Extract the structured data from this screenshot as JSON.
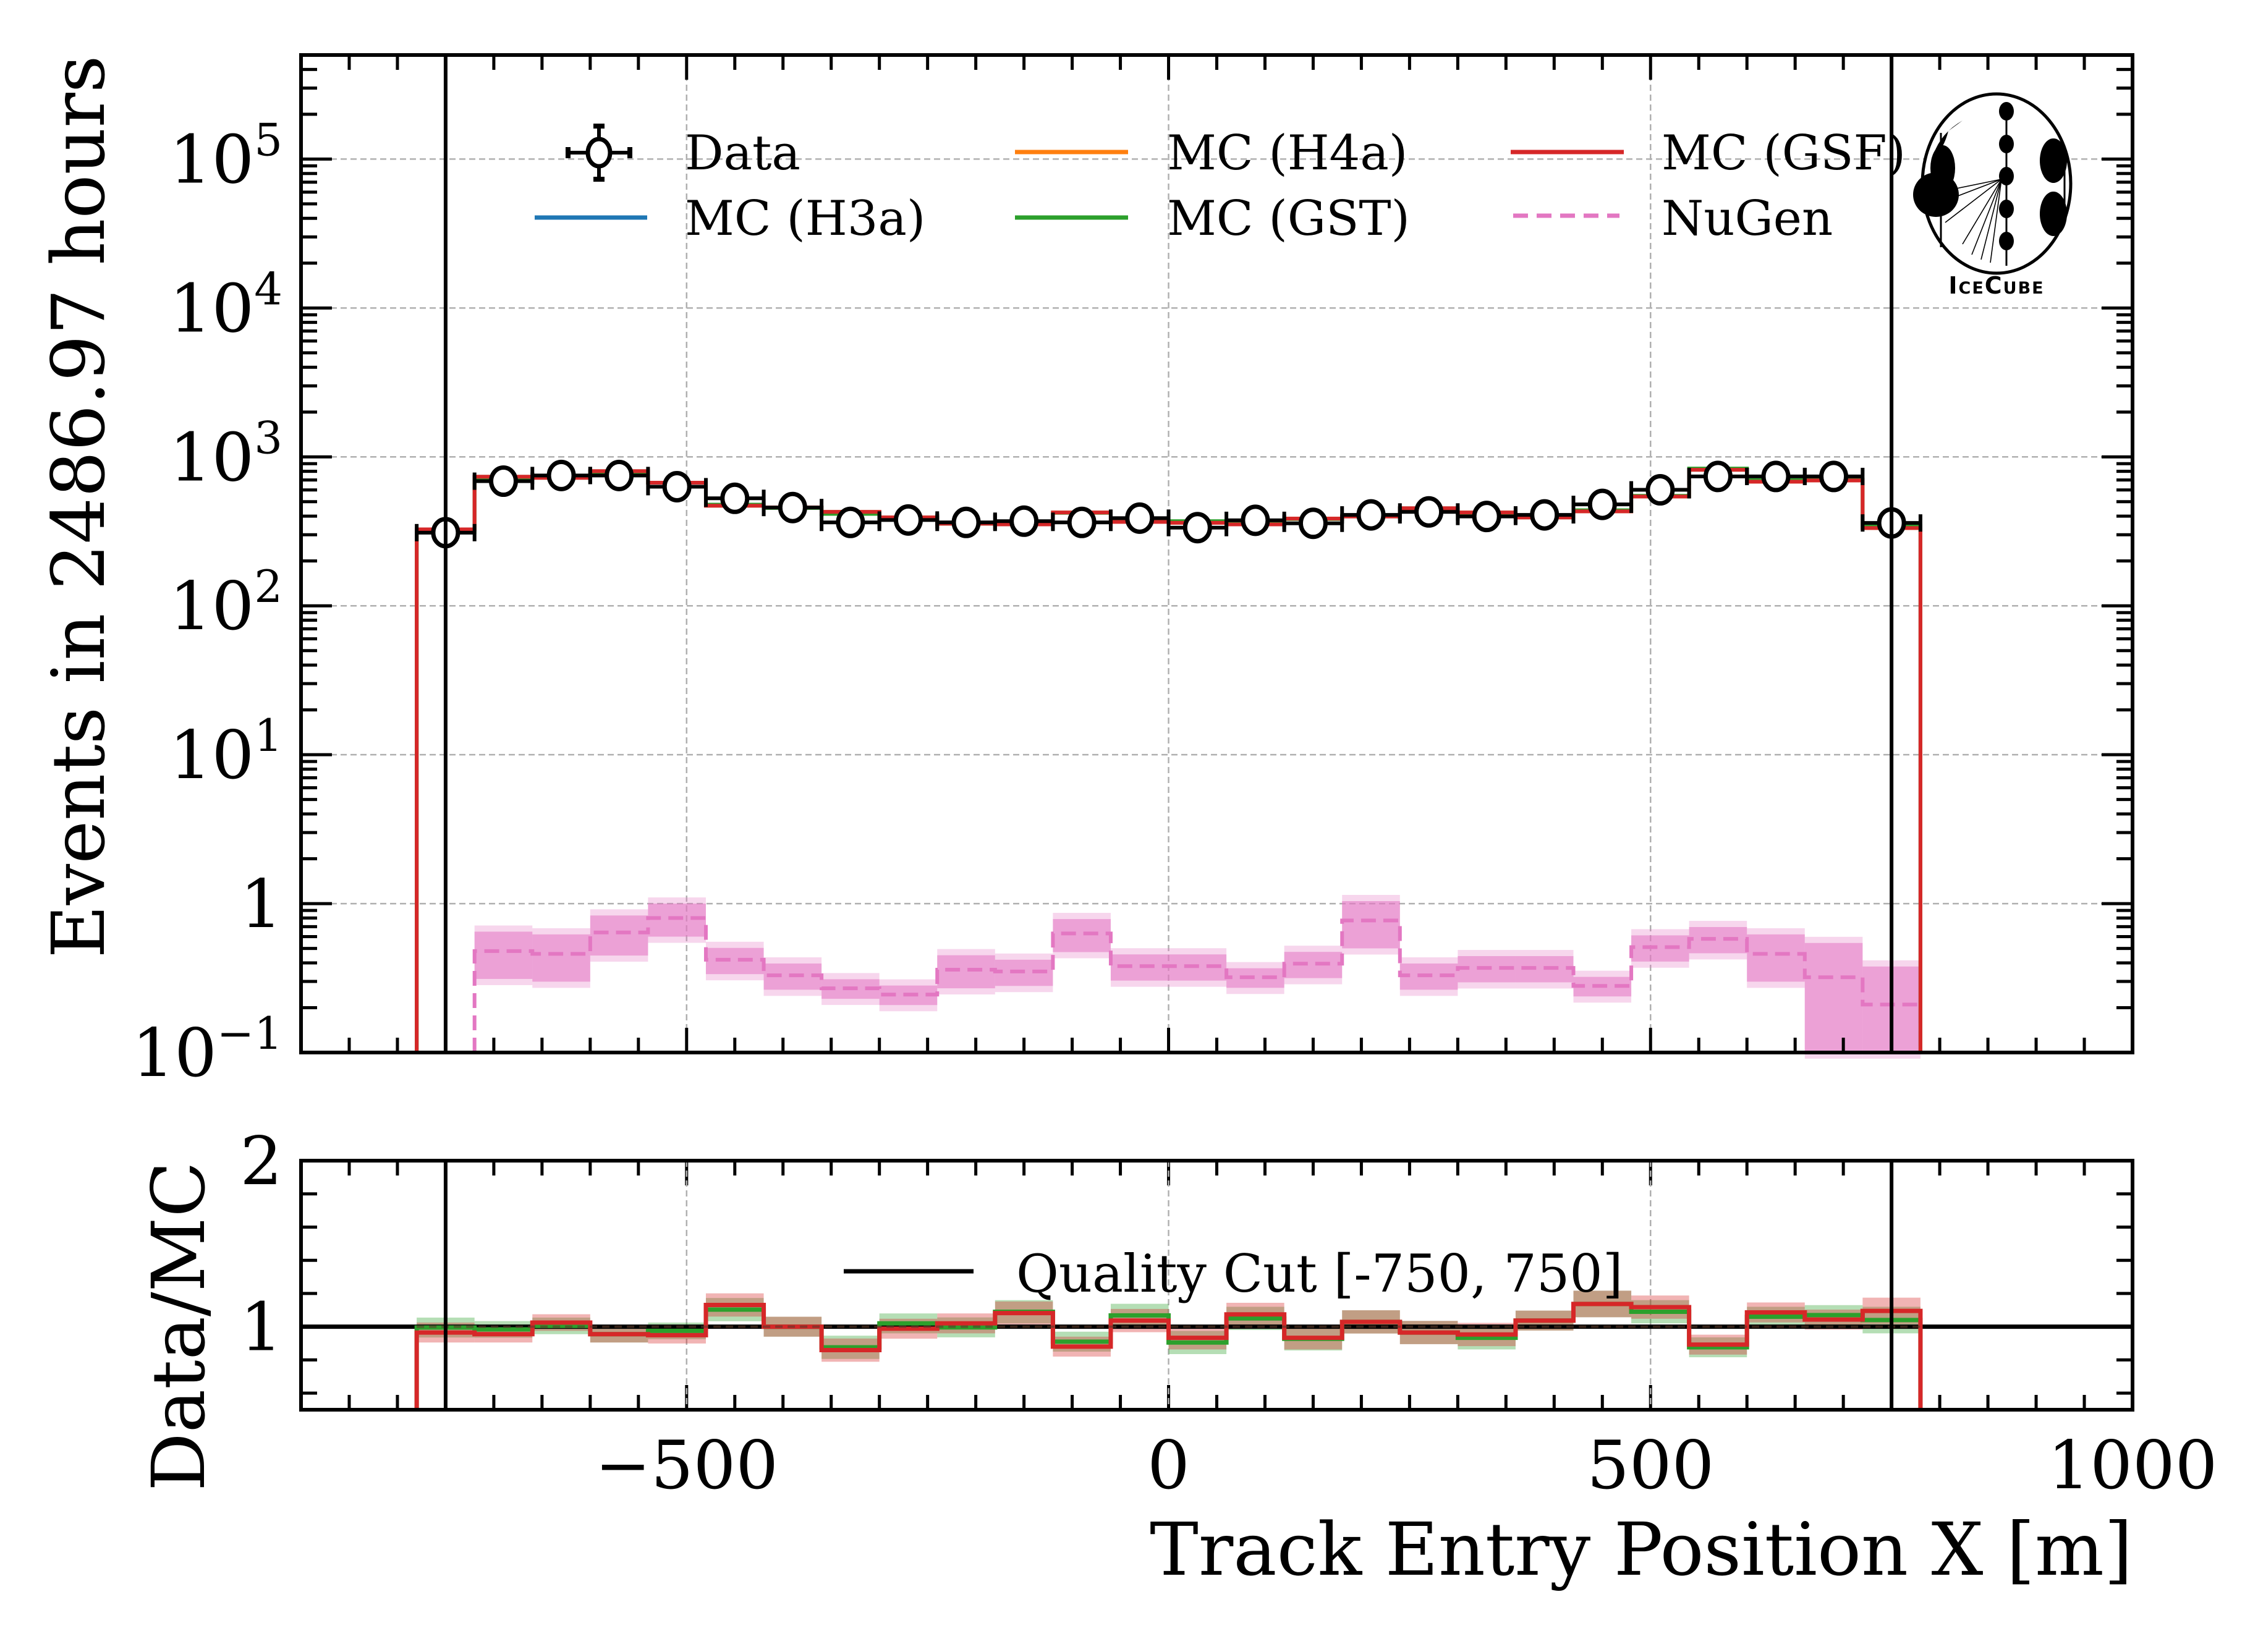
{
  "chart_data": [
    {
      "panel": "main",
      "type": "histogram-step",
      "yscale": "log",
      "xlabel": "",
      "ylabel": "Events in 2486.97 hours",
      "xlim": [
        -900,
        1000
      ],
      "ylim": [
        0.1,
        500000
      ],
      "grid": true,
      "bin_edges": [
        -780,
        -720,
        -660,
        -600,
        -540,
        -480,
        -420,
        -360,
        -300,
        -240,
        -180,
        -120,
        -60,
        0,
        60,
        120,
        180,
        240,
        300,
        360,
        420,
        480,
        540,
        600,
        660,
        720,
        780
      ],
      "y_ticks": [
        {
          "value": 0.1,
          "label": "10^-1",
          "base": "10",
          "exp": "−1"
        },
        {
          "value": 1,
          "label": "1",
          "base": "1",
          "exp": ""
        },
        {
          "value": 10,
          "label": "10^1",
          "base": "10",
          "exp": "1"
        },
        {
          "value": 100,
          "label": "10^2",
          "base": "10",
          "exp": "2"
        },
        {
          "value": 1000,
          "label": "10^3",
          "base": "10",
          "exp": "3"
        },
        {
          "value": 10000,
          "label": "10^4",
          "base": "10",
          "exp": "4"
        },
        {
          "value": 100000,
          "label": "10^5",
          "base": "10",
          "exp": "5"
        }
      ],
      "series": [
        {
          "name": "Data",
          "kind": "points",
          "color": "#000000",
          "values": [
            310,
            687,
            750,
            750,
            631,
            527,
            457,
            363,
            377,
            363,
            370,
            363,
            388,
            335,
            375,
            358,
            408,
            427,
            398,
            408,
            480,
            601,
            739,
            739,
            739,
            360
          ]
        },
        {
          "name": "MC (H3a)",
          "kind": "step",
          "color": "#1f77b4",
          "values": [
            326,
            736,
            724,
            802,
            671,
            470,
            458,
            427,
            392,
            356,
            352,
            423,
            366,
            361,
            352,
            385,
            398,
            452,
            423,
            392,
            431,
            542,
            819,
            682,
            695,
            333
          ]
        },
        {
          "name": "MC (H4a)",
          "kind": "step",
          "color": "#ff7f0e",
          "values": [
            326,
            736,
            724,
            802,
            671,
            470,
            458,
            427,
            392,
            356,
            352,
            423,
            366,
            361,
            352,
            385,
            398,
            452,
            423,
            392,
            431,
            542,
            819,
            682,
            695,
            333
          ]
        },
        {
          "name": "MC (GST)",
          "kind": "step",
          "color": "#2ca02c",
          "values": [
            312,
            727,
            736,
            790,
            671,
            478,
            454,
            414,
            385,
            356,
            358,
            421,
            372,
            370,
            355,
            383,
            405,
            445,
            418,
            398,
            438,
            548,
            835,
            698,
            705,
            345
          ]
        },
        {
          "name": "MC (GSF)",
          "kind": "step",
          "color": "#d62728",
          "values": [
            326,
            736,
            724,
            802,
            671,
            470,
            458,
            427,
            392,
            356,
            352,
            423,
            366,
            361,
            352,
            385,
            398,
            452,
            423,
            392,
            431,
            542,
            819,
            682,
            695,
            333
          ]
        },
        {
          "name": "NuGen",
          "kind": "step-dashed",
          "color": "#e377c2",
          "values": [
            null,
            0.48,
            0.46,
            0.64,
            0.8,
            0.42,
            0.33,
            0.27,
            0.245,
            0.36,
            0.35,
            0.63,
            0.38,
            0.38,
            0.32,
            0.395,
            0.77,
            0.33,
            0.37,
            0.37,
            0.28,
            0.51,
            0.58,
            0.46,
            0.32,
            0.21
          ],
          "band_rel_err": [
            null,
            0.35,
            0.35,
            0.3,
            0.25,
            0.2,
            0.2,
            0.15,
            0.15,
            0.25,
            0.2,
            0.25,
            0.2,
            0.2,
            0.15,
            0.2,
            0.35,
            0.2,
            0.2,
            0.2,
            0.15,
            0.2,
            0.2,
            0.35,
            0.7,
            0.8
          ]
        }
      ]
    },
    {
      "panel": "ratio",
      "type": "histogram-step",
      "xlabel": "Track Entry Position X [m]",
      "ylabel": "Data/MC",
      "xlim": [
        -900,
        1000
      ],
      "ylim": [
        0.5,
        2
      ],
      "grid": true,
      "x_ticks": [
        {
          "value": -500,
          "label": "−500"
        },
        {
          "value": 0,
          "label": "0"
        },
        {
          "value": 500,
          "label": "500"
        },
        {
          "value": 1000,
          "label": "1000"
        }
      ],
      "y_ticks": [
        {
          "value": 1,
          "label": "1"
        },
        {
          "value": 2,
          "label": "2"
        }
      ],
      "reference_line": 1,
      "series": [
        {
          "name": "MC (GST)",
          "color": "#2ca02c",
          "values": [
            0.995,
            0.984,
            1.005,
            0.955,
            0.975,
            1.103,
            1.0,
            0.876,
            1.02,
            0.996,
            1.09,
            0.91,
            1.068,
            0.905,
            1.05,
            0.927,
            1.029,
            0.965,
            0.933,
            1.037,
            1.137,
            1.09,
            0.876,
            1.06,
            1.07,
            1.04
          ],
          "band_rel_err": [
            0.06,
            0.05,
            0.05,
            0.05,
            0.05,
            0.07,
            0.06,
            0.07,
            0.06,
            0.06,
            0.07,
            0.06,
            0.07,
            0.07,
            0.07,
            0.07,
            0.07,
            0.07,
            0.07,
            0.06,
            0.08,
            0.07,
            0.06,
            0.06,
            0.06,
            0.08
          ]
        },
        {
          "name": "MC (GSF)",
          "color": "#d62728",
          "values": [
            0.965,
            0.955,
            1.025,
            0.955,
            0.949,
            1.131,
            1.0,
            0.859,
            0.988,
            1.02,
            1.082,
            0.88,
            1.037,
            0.933,
            1.074,
            0.933,
            1.029,
            0.965,
            0.953,
            1.037,
            1.137,
            1.118,
            0.892,
            1.086,
            1.043,
            1.095
          ],
          "band_rel_err": [
            0.06,
            0.05,
            0.05,
            0.05,
            0.05,
            0.07,
            0.06,
            0.07,
            0.06,
            0.06,
            0.07,
            0.06,
            0.07,
            0.07,
            0.07,
            0.07,
            0.07,
            0.07,
            0.07,
            0.06,
            0.08,
            0.07,
            0.06,
            0.06,
            0.06,
            0.08
          ]
        }
      ]
    }
  ],
  "quality_cut": {
    "values": [
      -750,
      750
    ],
    "label": "Quality Cut [-750, 750]",
    "color": "#000000"
  },
  "legend": {
    "placement": "top",
    "entries": [
      {
        "label": "Data",
        "kind": "points",
        "color": "#000000"
      },
      {
        "label": "MC (H3a)",
        "kind": "line",
        "color": "#1f77b4"
      },
      {
        "label": "MC (H4a)",
        "kind": "line",
        "color": "#ff7f0e"
      },
      {
        "label": "MC (GST)",
        "kind": "line",
        "color": "#2ca02c"
      },
      {
        "label": "MC (GSF)",
        "kind": "line",
        "color": "#d62728"
      },
      {
        "label": "NuGen",
        "kind": "dashed",
        "color": "#e377c2"
      }
    ]
  },
  "logo": {
    "label": "IceCube"
  }
}
